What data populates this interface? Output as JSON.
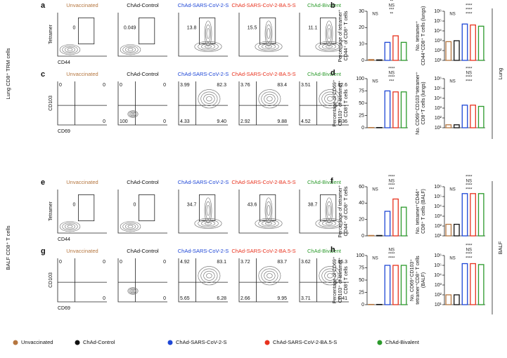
{
  "row_labels": [
    "Lung CD8⁺ TRM cells",
    "BALF CD8⁺ T cells"
  ],
  "side_labels": [
    "Lung",
    "BALF"
  ],
  "groups": [
    {
      "name": "Unvaccinated",
      "color": "#b5763f"
    },
    {
      "name": "ChAd-Control",
      "color": "#111111"
    },
    {
      "name": "ChAd-SARS-CoV-2-S",
      "color": "#1f47d6"
    },
    {
      "name": "ChAd-SARS-CoV-2-BA.5-S",
      "color": "#e8321e"
    },
    {
      "name": "ChAd-Bivalent",
      "color": "#2b9a2b"
    }
  ],
  "flow_rows": [
    {
      "letter": "a",
      "kind": "gate",
      "y_label": "Tetramer",
      "x_label": "CD44",
      "values": [
        "0",
        "0.049",
        "13.8",
        "15.5",
        "11.1"
      ]
    },
    {
      "letter": "c",
      "kind": "quad",
      "y_label": "CD103",
      "x_label": "CD69",
      "values": [
        [
          "0",
          "0",
          null,
          "0"
        ],
        [
          "0",
          "0",
          "100",
          "0"
        ],
        [
          "3.99",
          "82.3",
          "4.33",
          "9.40"
        ],
        [
          "3.76",
          "83.4",
          "2.92",
          "9.88"
        ],
        [
          "3.51",
          "82.6",
          "4.52",
          "9.36"
        ]
      ]
    },
    {
      "letter": "e",
      "kind": "gate",
      "y_label": "Tetramer",
      "x_label": "CD44",
      "values": [
        "0",
        "0",
        "34.7",
        "43.6",
        "38.7"
      ]
    },
    {
      "letter": "g",
      "kind": "quad",
      "y_label": "CD103",
      "x_label": "CD69",
      "values": [
        [
          "0",
          "0",
          null,
          "0"
        ],
        [
          "0",
          "0",
          null,
          "0"
        ],
        [
          "4.92",
          "83.1",
          "5.65",
          "6.28"
        ],
        [
          "3.72",
          "83.7",
          "2.66",
          "9.95"
        ],
        [
          "3.62",
          "86.3",
          "3.71",
          "6.41"
        ]
      ]
    }
  ],
  "bar_panels": [
    {
      "letter": "b",
      "charts": [
        {
          "y_label": [
            "Percentage of tetramer⁺",
            "CD44⁺ of CD8⁺ T cells"
          ],
          "log": false,
          "ylim": [
            0,
            30
          ],
          "yticks": [
            0,
            10,
            20,
            30
          ],
          "values": [
            0.5,
            0.3,
            11,
            15,
            11
          ],
          "sig": [
            "NS",
            "**",
            "***",
            "NS",
            "**"
          ]
        },
        {
          "y_label": [
            "No. tetramer⁺",
            "CD44⁺CD8⁺ T cells (lungs)"
          ],
          "log": true,
          "ylim": [
            10,
            1000000
          ],
          "yticks": [
            {
              "value": 10,
              "label": "10¹"
            },
            {
              "value": 100,
              "label": "10²"
            },
            {
              "value": 1000,
              "label": "10³"
            },
            {
              "value": 10000,
              "label": "10⁴"
            },
            {
              "value": 100000,
              "label": "10⁵"
            },
            {
              "value": 1000000,
              "label": "10⁶"
            }
          ],
          "values": [
            800,
            1000,
            50000,
            40000,
            30000
          ],
          "sig": [
            "NS",
            "****",
            "****",
            "****"
          ]
        }
      ]
    },
    {
      "letter": "d",
      "charts": [
        {
          "y_label": [
            "Percentage of CD69⁺",
            "CD103⁺ of tetramer⁺",
            "CD8⁺ T cells"
          ],
          "log": false,
          "ylim": [
            0,
            100
          ],
          "yticks": [
            0,
            25,
            50,
            75,
            100
          ],
          "values": [
            0.5,
            0.5,
            75,
            73,
            73
          ],
          "sig": [
            "NS",
            "***",
            "****",
            "NS",
            "****"
          ]
        },
        {
          "y_label": [
            "No. CD69⁺CD103⁺tetramer⁺",
            "CD8⁺T cells (lungs)"
          ],
          "log": true,
          "ylim": [
            10,
            1000000
          ],
          "yticks": [
            {
              "value": 10,
              "label": "10¹"
            },
            {
              "value": 100,
              "label": "10²"
            },
            {
              "value": 1000,
              "label": "10³"
            },
            {
              "value": 10000,
              "label": "10⁴"
            },
            {
              "value": 100000,
              "label": "10⁵"
            },
            {
              "value": 1000000,
              "label": "10⁶"
            }
          ],
          "values": [
            20,
            20,
            2000,
            2000,
            1500
          ],
          "sig": [
            "NS",
            "****",
            "****",
            "NS",
            "****"
          ]
        }
      ]
    },
    {
      "letter": "f",
      "charts": [
        {
          "y_label": [
            "Percentage of tetramer⁺",
            "CD44⁺ of CD8⁺ T cells"
          ],
          "log": false,
          "ylim": [
            0,
            60
          ],
          "yticks": [
            0,
            20,
            40,
            60
          ],
          "values": [
            0.5,
            0.5,
            30,
            45,
            35
          ],
          "sig": [
            "NS",
            "***",
            "****",
            "NS",
            "****"
          ]
        },
        {
          "y_label": [
            "No. tetramer⁺CD44⁺",
            "CD8⁺ T cells (BALF)"
          ],
          "log": true,
          "ylim": [
            10,
            1000000
          ],
          "yticks": [
            {
              "value": 10,
              "label": "10¹"
            },
            {
              "value": 100,
              "label": "10²"
            },
            {
              "value": 1000,
              "label": "10³"
            },
            {
              "value": 10000,
              "label": "10⁴"
            },
            {
              "value": 100000,
              "label": "10⁵"
            },
            {
              "value": 1000000,
              "label": "10⁶"
            }
          ],
          "values": [
            150,
            150,
            200000,
            200000,
            200000
          ],
          "sig": [
            "NS",
            "****",
            "****",
            "NS",
            "****"
          ]
        }
      ]
    },
    {
      "letter": "h",
      "charts": [
        {
          "y_label": [
            "Percentage of CD69⁺",
            "CD103⁺ of tetramer⁺",
            "CD8⁺ T cells"
          ],
          "log": false,
          "ylim": [
            0,
            100
          ],
          "yticks": [
            0,
            25,
            50,
            75,
            100
          ],
          "values": [
            0.5,
            0.5,
            80,
            80,
            80
          ],
          "sig": [
            "NS",
            "****",
            "****",
            "NS"
          ]
        },
        {
          "y_label": [
            "No. CD69⁺CD103⁺",
            "tetramer⁺CD8⁺ T cells",
            "(BALF)"
          ],
          "log": true,
          "ylim": [
            10,
            1000000
          ],
          "yticks": [
            {
              "value": 10,
              "label": "10¹"
            },
            {
              "value": 100,
              "label": "10²"
            },
            {
              "value": 1000,
              "label": "10³"
            },
            {
              "value": 10000,
              "label": "10⁴"
            },
            {
              "value": 100000,
              "label": "10⁵"
            },
            {
              "value": 1000000,
              "label": "10⁶"
            }
          ],
          "values": [
            100,
            100,
            150000,
            150000,
            120000
          ],
          "sig": [
            "NS",
            "****",
            "****",
            "NS",
            "****"
          ]
        }
      ]
    }
  ]
}
